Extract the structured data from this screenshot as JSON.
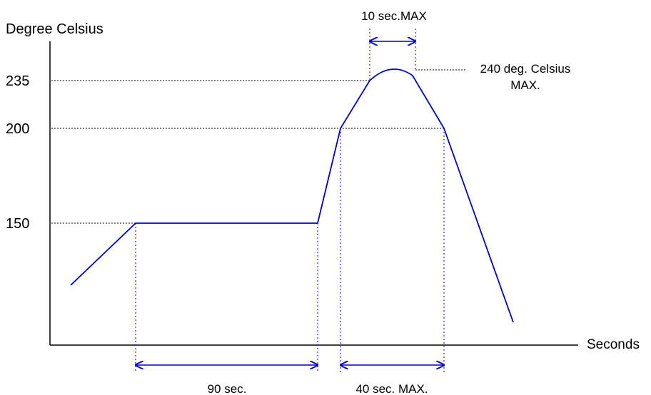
{
  "colors": {
    "curve": "#0000cc",
    "axis": "#000000",
    "guide": "#000000"
  },
  "axes": {
    "y_label": "Degree Celsius",
    "x_label": "Seconds"
  },
  "y_ticks": {
    "t235": "235",
    "t200": "200",
    "t150": "150"
  },
  "annotations": {
    "ten_sec_max": "10 sec.MAX",
    "peak_line1": "240 deg. Celsius",
    "peak_line2": "MAX.",
    "ninety_sec": "90 sec.",
    "forty_sec_max": "40 sec. MAX."
  }
}
